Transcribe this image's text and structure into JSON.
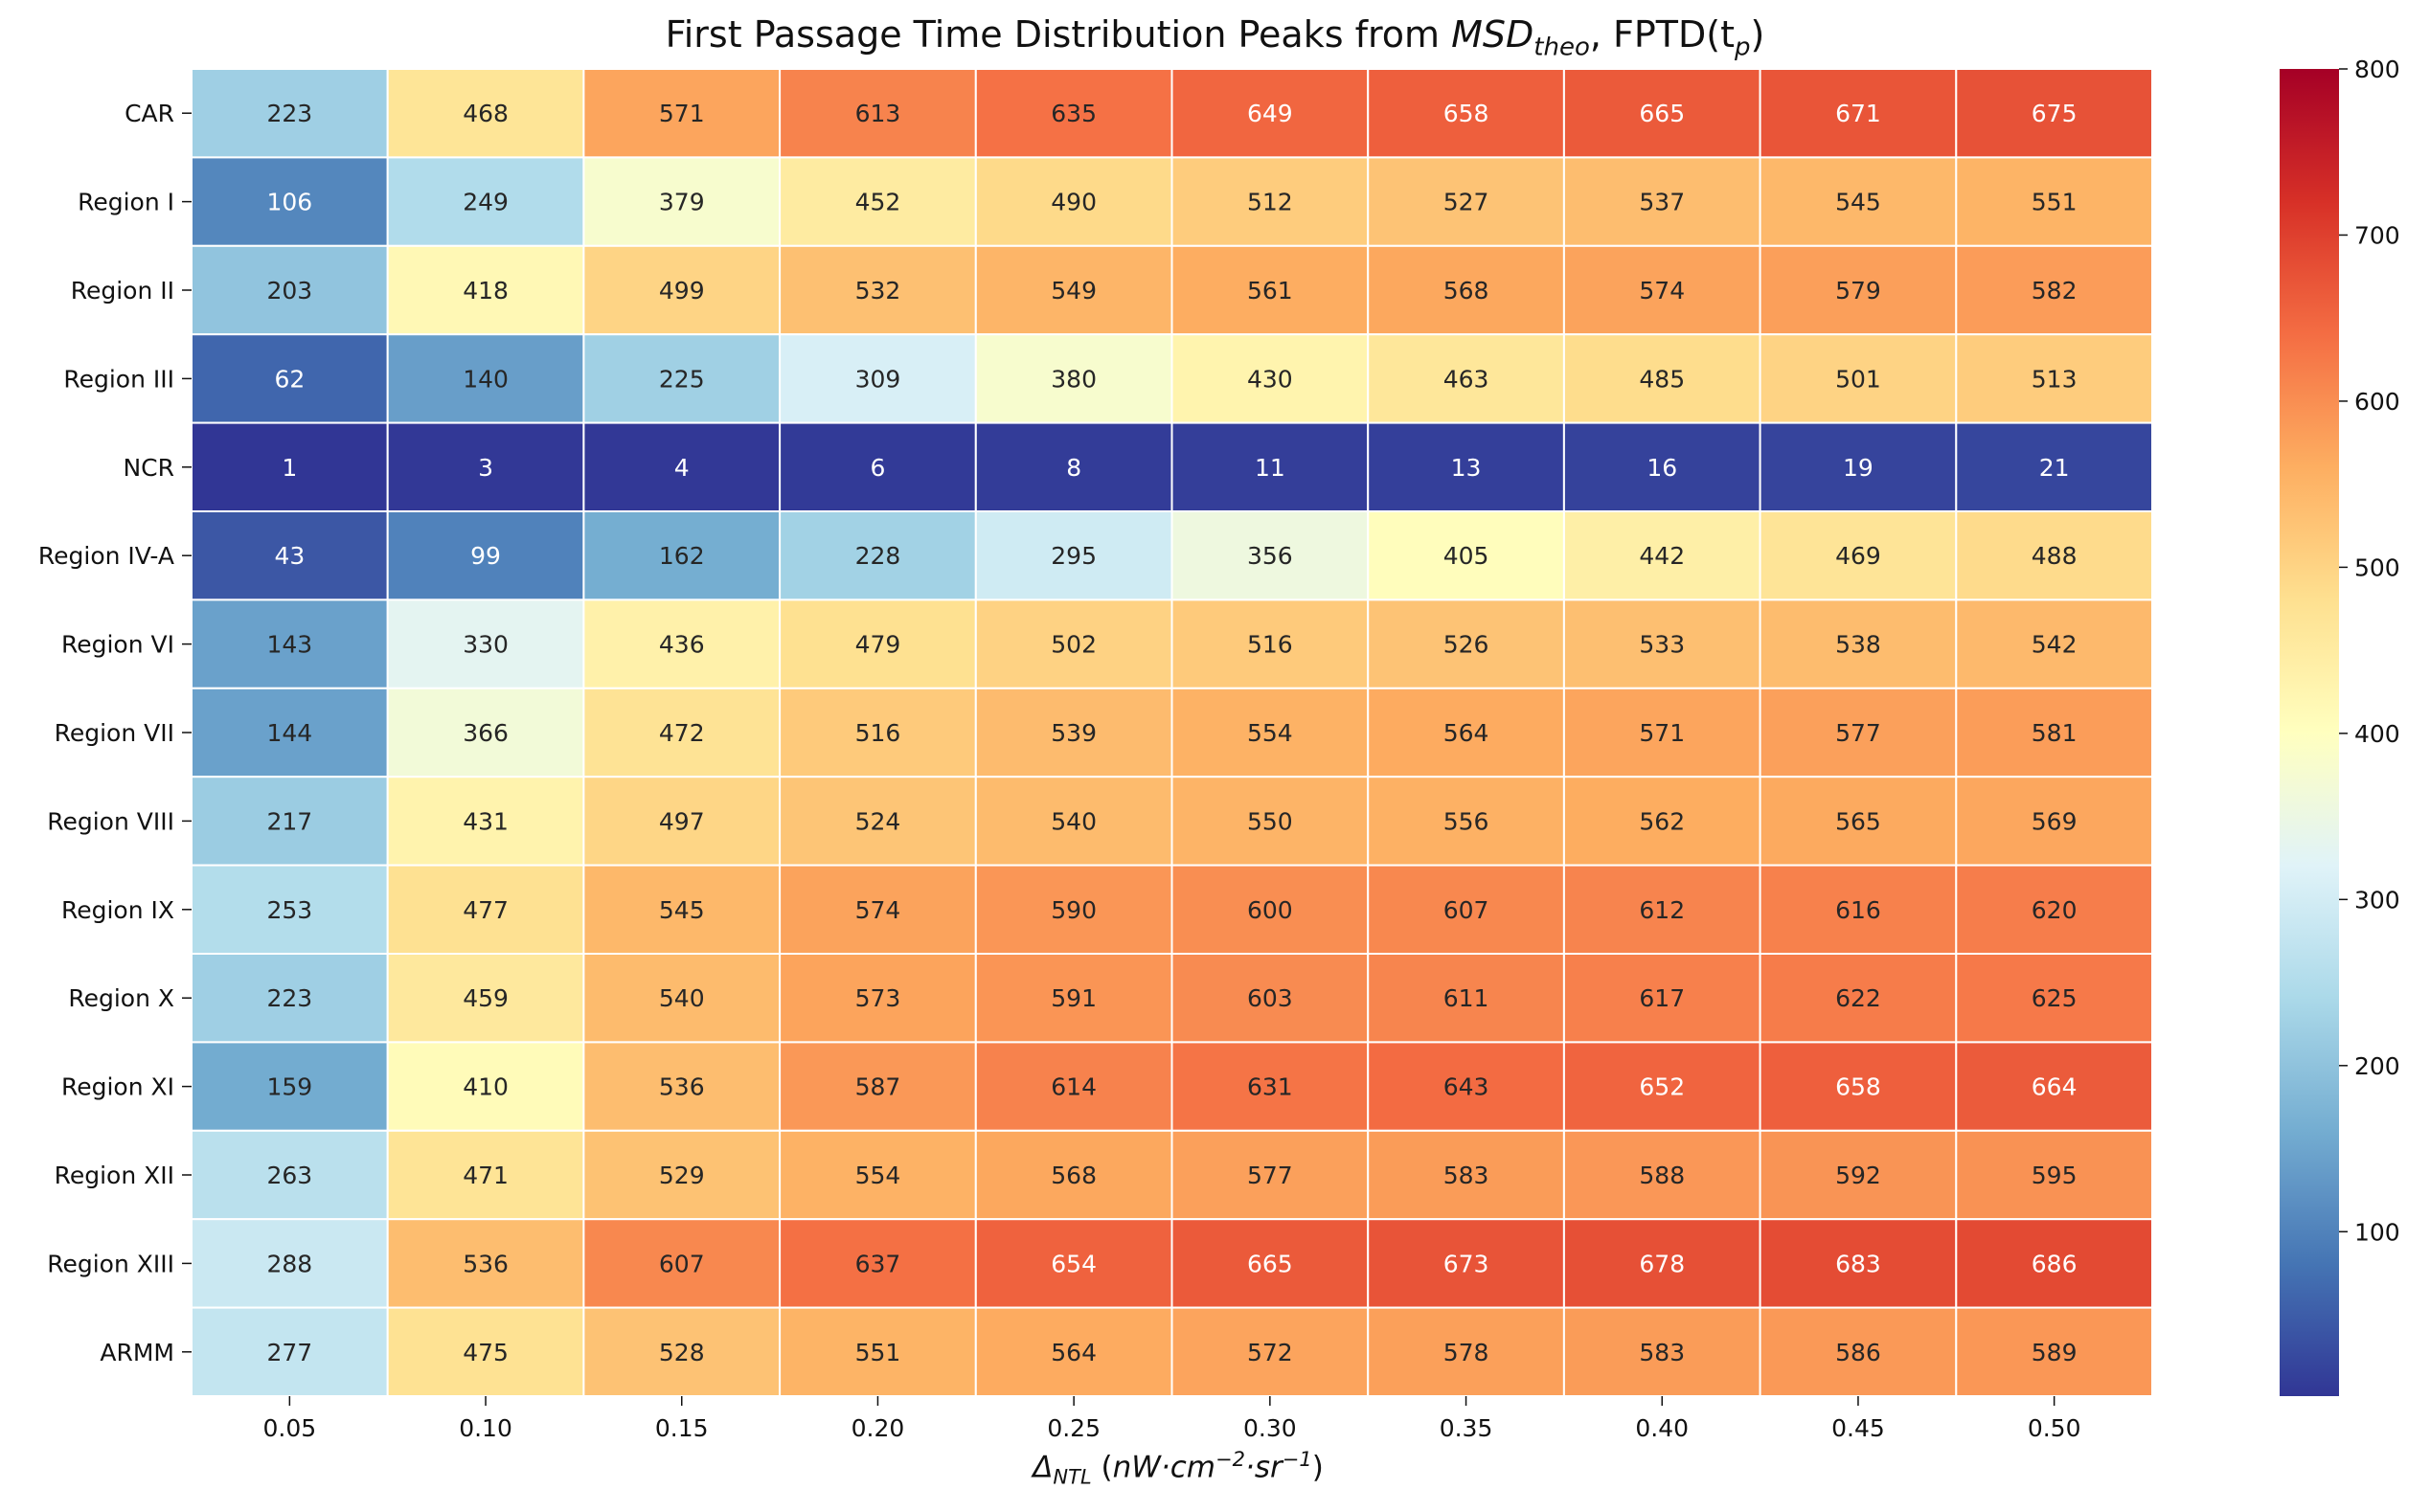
{
  "chart_data": {
    "type": "heatmap",
    "title": {
      "prefix": "First Passage Time Distribution Peaks from ",
      "msd_main": "MSD",
      "msd_sub": "theo",
      "middle": ", FPTD(t",
      "tp_sub": "p",
      "suffix": ")"
    },
    "xlabel": {
      "delta": "Δ",
      "sub": "NTL",
      "open": " (",
      "unit_a": "nW·cm",
      "sup_a": "−2",
      "unit_b": "·sr",
      "sup_b": "−1",
      "close": ")"
    },
    "ylabel": "",
    "x_categories": [
      "0.05",
      "0.10",
      "0.15",
      "0.20",
      "0.25",
      "0.30",
      "0.35",
      "0.40",
      "0.45",
      "0.50"
    ],
    "y_categories": [
      "CAR",
      "Region I",
      "Region II",
      "Region III",
      "NCR",
      "Region IV-A",
      "Region VI",
      "Region VII",
      "Region VIII",
      "Region IX",
      "Region X",
      "Region XI",
      "Region XII",
      "Region XIII",
      "ARMM"
    ],
    "values": [
      [
        223,
        468,
        571,
        613,
        635,
        649,
        658,
        665,
        671,
        675
      ],
      [
        106,
        249,
        379,
        452,
        490,
        512,
        527,
        537,
        545,
        551
      ],
      [
        203,
        418,
        499,
        532,
        549,
        561,
        568,
        574,
        579,
        582
      ],
      [
        62,
        140,
        225,
        309,
        380,
        430,
        463,
        485,
        501,
        513
      ],
      [
        1,
        3,
        4,
        6,
        8,
        11,
        13,
        16,
        19,
        21
      ],
      [
        43,
        99,
        162,
        228,
        295,
        356,
        405,
        442,
        469,
        488
      ],
      [
        143,
        330,
        436,
        479,
        502,
        516,
        526,
        533,
        538,
        542
      ],
      [
        144,
        366,
        472,
        516,
        539,
        554,
        564,
        571,
        577,
        581
      ],
      [
        217,
        431,
        497,
        524,
        540,
        550,
        556,
        562,
        565,
        569
      ],
      [
        253,
        477,
        545,
        574,
        590,
        600,
        607,
        612,
        616,
        620
      ],
      [
        223,
        459,
        540,
        573,
        591,
        603,
        611,
        617,
        622,
        625
      ],
      [
        159,
        410,
        536,
        587,
        614,
        631,
        643,
        652,
        658,
        664
      ],
      [
        263,
        471,
        529,
        554,
        568,
        577,
        583,
        588,
        592,
        595
      ],
      [
        288,
        536,
        607,
        637,
        654,
        665,
        673,
        678,
        683,
        686
      ],
      [
        277,
        475,
        528,
        551,
        564,
        572,
        578,
        583,
        586,
        589
      ]
    ],
    "colorbar": {
      "colormap": "RdYlBu_r",
      "min": 1,
      "max": 800,
      "ticks": [
        100,
        200,
        300,
        400,
        500,
        600,
        700,
        800
      ]
    },
    "grid": false,
    "legend": "colorbar-right"
  }
}
